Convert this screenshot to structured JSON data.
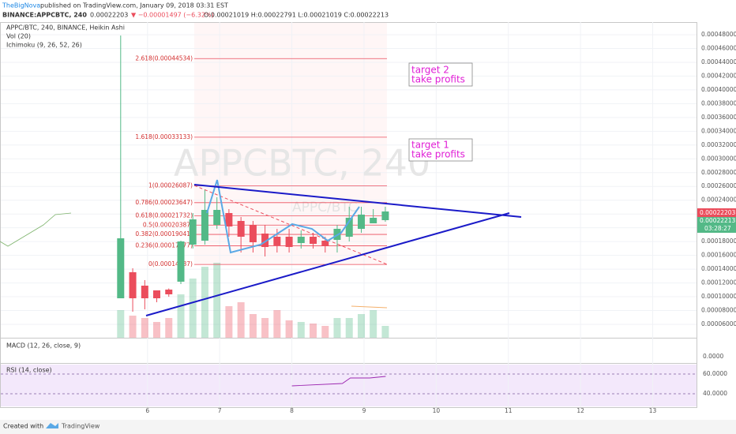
{
  "header": {
    "author": "TheBigNova",
    "published": "published on TradingView.com, January 09, 2018 03:31 EST",
    "symbol": "BINANCE:APPCBTC, 240",
    "last": "0.00022203",
    "change": "▼ −0.00001497 (−6.32%)",
    "ohlc": "O:0.00021019 H:0.00022791 L:0.00021019 C:0.00022213"
  },
  "legend": [
    "APPC/BTC, 240, BINANCE, Heikin Ashi",
    "Vol (20)",
    "Ichimoku (9, 26, 52, 26)"
  ],
  "watermark": "APPCBTC, 240",
  "watermark_small": "APPC/BTC",
  "annotations": [
    [
      "target 2",
      "take profits"
    ],
    [
      "target 1",
      "take profits"
    ]
  ],
  "price_labels": [
    "0.00022203",
    "0.00022213",
    "03:28:27"
  ],
  "chart_data": {
    "type": "candlestick",
    "up_color": "#53b987",
    "down_color": "#eb4d5c",
    "x": [
      5.628,
      5.795,
      5.962,
      6.128,
      6.295,
      6.462,
      6.628,
      6.795,
      6.962,
      7.128,
      7.295,
      7.462,
      7.628,
      7.795,
      7.962,
      8.128,
      8.295,
      8.462,
      8.628,
      8.795,
      8.962,
      9.128,
      9.295
    ],
    "open": [
      9.777e-05,
      0.00013554,
      0.00011608,
      0.00010921,
      0.00011036,
      0.0001218,
      0.00017559,
      0.00018131,
      0.0002042,
      0.00022137,
      0.00020992,
      0.0002042,
      0.00019161,
      0.00018703,
      0.00018703,
      0.00017788,
      0.00018703,
      0.00018131,
      0.00018246,
      0.00018703,
      0.00019848,
      0.00020649,
      0.00021107
    ],
    "high": [
      0.00047886,
      0.00014126,
      0.00012409,
      0.00010921,
      0.000112,
      0.00018131,
      0.00022137,
      0.0002557,
      0.00024425,
      0.00022709,
      0.00021564,
      0.00020992,
      0.0002042,
      0.00019848,
      0.00019848,
      0.00019619,
      0.00019276,
      0.00018703,
      0.0002042,
      0.00023052,
      0.00023052,
      0.00022709,
      0.00023052
    ],
    "low": [
      9.777e-05,
      7.832e-05,
      8.175e-05,
      9.2e-05,
      0.0001,
      0.00011837,
      0.00017,
      0.00017559,
      0.00019848,
      0.00018703,
      0.00016415,
      0.00016415,
      0.00015842,
      0.00016415,
      0.00016415,
      0.00016987,
      0.00016987,
      0.00016415,
      0.00016415,
      0.00018017,
      0.00019276,
      0.00020649,
      0.00020878
    ],
    "close": [
      0.00018475,
      9.777e-05,
      9.777e-05,
      9.777e-05,
      0.00010349,
      0.00018017,
      0.00021221,
      0.00022594,
      0.00022594,
      0.00020191,
      0.00018703,
      0.00017902,
      0.00017216,
      0.00017445,
      0.00017216,
      0.00018703,
      0.00017673,
      0.0001733,
      0.00019848,
      0.0002145,
      0.00021908,
      0.0002145,
      0.00022365
    ],
    "volume": [
      35,
      28,
      25,
      20,
      25,
      55,
      75,
      90,
      95,
      40,
      45,
      30,
      25,
      35,
      22,
      20,
      18,
      15,
      25,
      25,
      30,
      35,
      15
    ],
    "xlim": [
      3.967,
      13.607
    ],
    "xticks": [
      6,
      7,
      8,
      9,
      10,
      11,
      12,
      13
    ],
    "ylim": [
      4.055e-05,
      0.0004983
    ],
    "yticks": [
      {
        "value": 0.00048,
        "label": "0.00048000"
      },
      {
        "value": 0.00046,
        "label": "0.00046000"
      },
      {
        "value": 0.00044,
        "label": "0.00044000"
      },
      {
        "value": 0.00042,
        "label": "0.00042000"
      },
      {
        "value": 0.0004,
        "label": "0.00040000"
      },
      {
        "value": 0.00038,
        "label": "0.00038000"
      },
      {
        "value": 0.00036,
        "label": "0.00036000"
      },
      {
        "value": 0.00034,
        "label": "0.00034000"
      },
      {
        "value": 0.00032,
        "label": "0.00032000"
      },
      {
        "value": 0.0003,
        "label": "0.00030000"
      },
      {
        "value": 0.00028,
        "label": "0.00028000"
      },
      {
        "value": 0.00026,
        "label": "0.00026000"
      },
      {
        "value": 0.00024,
        "label": "0.00024000"
      },
      {
        "value": 0.00022,
        "label": "0.00022000"
      },
      {
        "value": 0.0002,
        "label": "0.00020000"
      },
      {
        "value": 0.00018,
        "label": "0.00018000"
      },
      {
        "value": 0.00016,
        "label": "0.00016000"
      },
      {
        "value": 0.00014,
        "label": "0.00014000"
      },
      {
        "value": 0.00012,
        "label": "0.00012000"
      },
      {
        "value": 0.0001,
        "label": "0.00010000"
      },
      {
        "value": 8e-05,
        "label": "0.00008000"
      },
      {
        "value": 6e-05,
        "label": "0.00006000"
      }
    ],
    "fib": [
      {
        "value": 0.00044534,
        "label": "2.618(0.00044534)"
      },
      {
        "value": 0.00033133,
        "label": "1.618(0.00033133)"
      },
      {
        "value": 0.00026087,
        "label": "1(0.00026087)"
      },
      {
        "value": 0.00023647,
        "label": "0.786(0.00023647)"
      },
      {
        "value": 0.00021732,
        "label": "0.618(0.00021732)"
      },
      {
        "value": 0.00020387,
        "label": "0.5(0.00020387)"
      },
      {
        "value": 0.00019041,
        "label": "0.382(0.00019041)"
      },
      {
        "value": 0.00017377,
        "label": "0.236(0.00017377)"
      },
      {
        "value": 0.00014687,
        "label": "0(0.00014687)"
      }
    ]
  },
  "macd": {
    "title": "MACD (12, 26, close, 9)",
    "tick": "0.0000"
  },
  "rsi": {
    "title": "RSI (14, close)",
    "x": [
      8.0,
      8.7,
      8.81,
      9.08,
      9.3
    ],
    "values": [
      48,
      50.4,
      56,
      56,
      57.6
    ],
    "ylim": [
      27.2,
      69.6
    ],
    "yticks": [
      {
        "value": 60,
        "label": "60.0000"
      },
      {
        "value": 40,
        "label": "40.0000"
      }
    ]
  },
  "footer": {
    "created": "Created with",
    "brand": "TradingView"
  }
}
